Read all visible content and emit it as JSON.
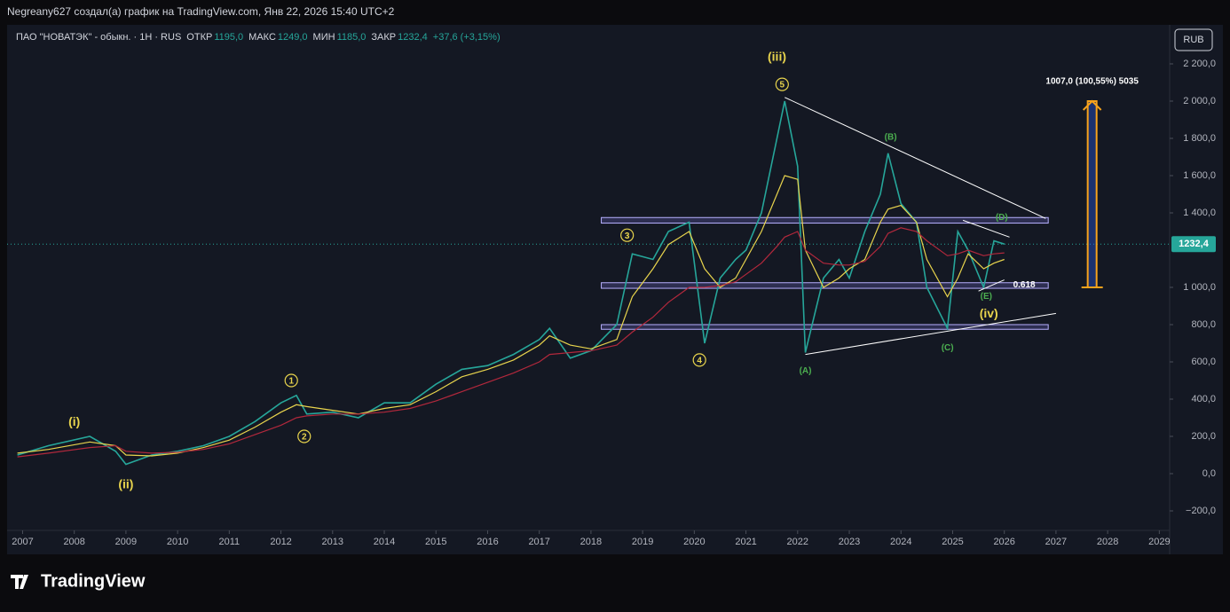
{
  "header": {
    "caption": "Negreany627 создал(а) график на TradingView.com, Янв 22, 2026 15:40 UTC+2"
  },
  "footer": {
    "logo": "TradingView"
  },
  "chart_data": {
    "type": "line",
    "legend": [
      "ПАО \"НОВАТЭК\" - обыкн. · 1H · RUS",
      "ОТКР",
      "1195,0",
      "МАКС",
      "1249,0",
      "МИН",
      "1185,0",
      "ЗАКР",
      "1232,4",
      "+37,6 (+3,15%)"
    ],
    "currency": "RUB",
    "last_price": 1232.4,
    "last_price_label": "1232,4",
    "x": [
      2006.9,
      2007.5,
      2008.3,
      2008.8,
      2009.0,
      2009.5,
      2010.0,
      2010.5,
      2011.0,
      2011.5,
      2012.0,
      2012.3,
      2012.5,
      2013.0,
      2013.5,
      2014.0,
      2014.5,
      2015.0,
      2015.5,
      2016.0,
      2016.5,
      2017.0,
      2017.2,
      2017.6,
      2018.0,
      2018.5,
      2018.8,
      2019.2,
      2019.5,
      2019.9,
      2020.2,
      2020.5,
      2020.8,
      2021.0,
      2021.3,
      2021.6,
      2021.75,
      2022.0,
      2022.15,
      2022.5,
      2022.8,
      2023.0,
      2023.3,
      2023.6,
      2023.75,
      2024.0,
      2024.3,
      2024.5,
      2024.9,
      2025.1,
      2025.3,
      2025.6,
      2025.8,
      2026.0
    ],
    "series": [
      {
        "name": "price",
        "color": "#26a69a",
        "values": [
          100,
          150,
          200,
          120,
          50,
          100,
          120,
          150,
          200,
          280,
          380,
          420,
          320,
          330,
          300,
          380,
          380,
          480,
          560,
          580,
          640,
          720,
          780,
          620,
          660,
          800,
          1180,
          1150,
          1300,
          1350,
          700,
          1050,
          1150,
          1200,
          1400,
          1800,
          2000,
          1650,
          650,
          1050,
          1150,
          1050,
          1300,
          1500,
          1720,
          1450,
          1350,
          1000,
          780,
          1300,
          1200,
          1000,
          1250,
          1232.4
        ]
      },
      {
        "name": "ma-fast",
        "color": "#e8d44d",
        "values": [
          110,
          130,
          170,
          150,
          100,
          95,
          110,
          140,
          180,
          250,
          330,
          370,
          360,
          340,
          320,
          350,
          370,
          440,
          520,
          560,
          610,
          690,
          740,
          690,
          670,
          720,
          950,
          1100,
          1230,
          1300,
          1100,
          1000,
          1050,
          1150,
          1300,
          1500,
          1600,
          1580,
          1200,
          1000,
          1050,
          1100,
          1150,
          1350,
          1420,
          1440,
          1350,
          1150,
          950,
          1050,
          1180,
          1100,
          1130,
          1150
        ]
      },
      {
        "name": "ma-slow",
        "color": "#b2283c",
        "values": [
          90,
          110,
          140,
          150,
          120,
          110,
          115,
          130,
          160,
          210,
          260,
          300,
          310,
          320,
          320,
          330,
          350,
          390,
          440,
          490,
          540,
          600,
          640,
          650,
          660,
          690,
          760,
          840,
          920,
          1000,
          1000,
          1010,
          1030,
          1070,
          1130,
          1220,
          1270,
          1300,
          1200,
          1130,
          1120,
          1120,
          1140,
          1220,
          1290,
          1320,
          1300,
          1250,
          1170,
          1180,
          1200,
          1170,
          1180,
          1185
        ]
      }
    ],
    "xlim": [
      2006.7,
      2029.2
    ],
    "ylim": [
      -300,
      2400
    ],
    "xticks": [
      2007,
      2008,
      2009,
      2010,
      2011,
      2012,
      2013,
      2014,
      2015,
      2016,
      2017,
      2018,
      2019,
      2020,
      2021,
      2022,
      2023,
      2024,
      2025,
      2026,
      2027,
      2028,
      2029
    ],
    "yticks": [
      {
        "value": 2200,
        "label": "2 200,0"
      },
      {
        "value": 2000,
        "label": "2 000,0"
      },
      {
        "value": 1800,
        "label": "1 800,0"
      },
      {
        "value": 1600,
        "label": "1 600,0"
      },
      {
        "value": 1400,
        "label": "1 400,0"
      },
      {
        "value": 1000,
        "label": "1 000,0"
      },
      {
        "value": 800,
        "label": "800,0"
      },
      {
        "value": 600,
        "label": "600,0"
      },
      {
        "value": 400,
        "label": "400,0"
      },
      {
        "value": 200,
        "label": "200,0"
      },
      {
        "value": 0,
        "label": "0,0"
      },
      {
        "value": -200,
        "label": "−200,0"
      }
    ],
    "zones": [
      [
        2018.2,
        2026.85,
        1345,
        1375
      ],
      [
        2018.2,
        2026.85,
        995,
        1025
      ],
      [
        2018.2,
        2026.85,
        775,
        800
      ]
    ],
    "trendlines": [
      [
        2021.75,
        2020,
        2026.8,
        1370
      ],
      [
        2022.15,
        640,
        2027.0,
        860
      ],
      [
        2025.2,
        1360,
        2026.1,
        1270
      ],
      [
        2025.5,
        980,
        2026.0,
        1040
      ]
    ],
    "measure": {
      "x": 2027.7,
      "from": 1000,
      "to": 2000,
      "label": "1007,0 (100,55%) 5035"
    },
    "fib": {
      "x": 2026.6,
      "value": 1012,
      "label": "0.618"
    },
    "annotations": [
      {
        "text": "(iii)",
        "x": 2021.6,
        "y": 2240,
        "color": "#e8d44d"
      },
      {
        "text": "5",
        "x": 2021.7,
        "y": 2090,
        "color": "#e8d44d"
      },
      {
        "text": "(B)",
        "x": 2023.8,
        "y": 1810,
        "color": "#4caf50"
      },
      {
        "text": "3",
        "x": 2018.7,
        "y": 1280,
        "color": "#e8d44d"
      },
      {
        "text": "4",
        "x": 2020.1,
        "y": 610,
        "color": "#e8d44d"
      },
      {
        "text": "(A)",
        "x": 2022.15,
        "y": 555,
        "color": "#4caf50"
      },
      {
        "text": "(C)",
        "x": 2024.9,
        "y": 680,
        "color": "#4caf50"
      },
      {
        "text": "(D)",
        "x": 2025.95,
        "y": 1380,
        "color": "#4caf50"
      },
      {
        "text": "(E)",
        "x": 2025.65,
        "y": 955,
        "color": "#4caf50"
      },
      {
        "text": "(iv)",
        "x": 2025.7,
        "y": 860,
        "color": "#e8d44d"
      },
      {
        "text": "(i)",
        "x": 2008.0,
        "y": 280,
        "color": "#e8d44d"
      },
      {
        "text": "(ii)",
        "x": 2009.0,
        "y": -55,
        "color": "#e8d44d"
      },
      {
        "text": "1",
        "x": 2012.2,
        "y": 500,
        "color": "#e8d44d"
      },
      {
        "text": "2",
        "x": 2012.45,
        "y": 200,
        "color": "#e8d44d"
      }
    ]
  }
}
